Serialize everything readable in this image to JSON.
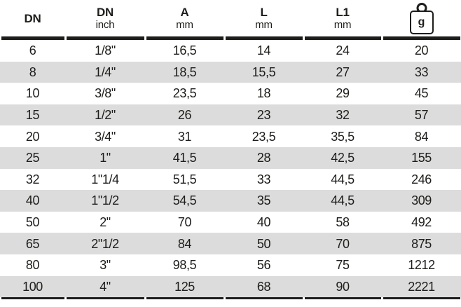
{
  "colors": {
    "text": "#1d1d1b",
    "stripe": "#dcdcdc",
    "line": "#1d1d1b"
  },
  "chart_data": {
    "type": "table",
    "title": "",
    "columns": [
      {
        "label": "DN",
        "unit": ""
      },
      {
        "label": "DN",
        "unit": "inch"
      },
      {
        "label": "A",
        "unit": "mm"
      },
      {
        "label": "L",
        "unit": "mm"
      },
      {
        "label": "L1",
        "unit": "mm"
      },
      {
        "label": "g",
        "unit": "g",
        "icon": "weight-icon"
      }
    ],
    "rows": [
      [
        "6",
        "1/8\"",
        "16,5",
        "14",
        "24",
        "20"
      ],
      [
        "8",
        "1/4\"",
        "18,5",
        "15,5",
        "27",
        "33"
      ],
      [
        "10",
        "3/8\"",
        "23,5",
        "18",
        "29",
        "45"
      ],
      [
        "15",
        "1/2\"",
        "26",
        "23",
        "32",
        "57"
      ],
      [
        "20",
        "3/4\"",
        "31",
        "23,5",
        "35,5",
        "84"
      ],
      [
        "25",
        "1\"",
        "41,5",
        "28",
        "42,5",
        "155"
      ],
      [
        "32",
        "1\"1/4",
        "51,5",
        "33",
        "44,5",
        "246"
      ],
      [
        "40",
        "1\"1/2",
        "54,5",
        "35",
        "44,5",
        "309"
      ],
      [
        "50",
        "2\"",
        "70",
        "40",
        "58",
        "492"
      ],
      [
        "65",
        "2\"1/2",
        "84",
        "50",
        "70",
        "875"
      ],
      [
        "80",
        "3\"",
        "98,5",
        "56",
        "75",
        "1212"
      ],
      [
        "100",
        "4\"",
        "125",
        "68",
        "90",
        "2221"
      ]
    ]
  }
}
